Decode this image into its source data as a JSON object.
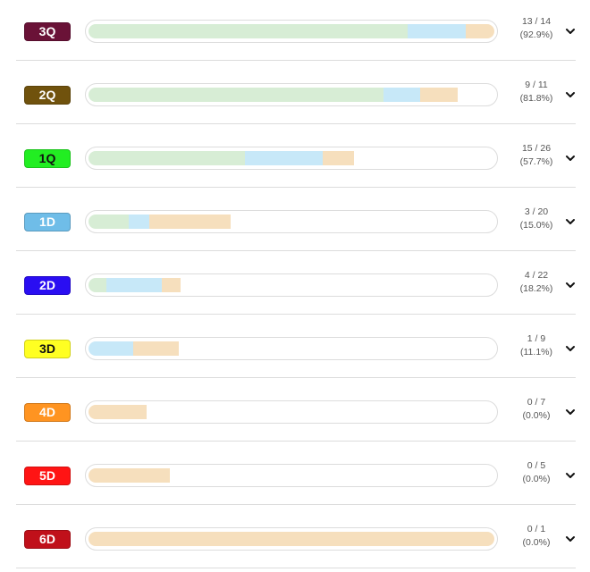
{
  "segment_colors": [
    "#d7edd5",
    "#c7e8f8",
    "#f6dfbd"
  ],
  "rows": [
    {
      "label": "3Q",
      "badge_color": "#6a1237",
      "badge_text_color": "#ffffff",
      "segments": [
        0.786,
        0.143,
        0.071
      ],
      "count": "13 / 14",
      "percent": "(92.9%)"
    },
    {
      "label": "2Q",
      "badge_color": "#70520d",
      "badge_text_color": "#ffffff",
      "segments": [
        0.727,
        0.091,
        0.091
      ],
      "count": "9 / 11",
      "percent": "(81.8%)"
    },
    {
      "label": "1Q",
      "badge_color": "#22ee22",
      "badge_text_color": "#111111",
      "segments": [
        0.385,
        0.192,
        0.077
      ],
      "count": "15 / 26",
      "percent": "(57.7%)"
    },
    {
      "label": "1D",
      "badge_color": "#6fbde8",
      "badge_text_color": "#ffffff",
      "segments": [
        0.1,
        0.05,
        0.2
      ],
      "count": "3 / 20",
      "percent": "(15.0%)"
    },
    {
      "label": "2D",
      "badge_color": "#2a0ef2",
      "badge_text_color": "#ffffff",
      "segments": [
        0.045,
        0.136,
        0.045
      ],
      "count": "4 / 22",
      "percent": "(18.2%)"
    },
    {
      "label": "3D",
      "badge_color": "#ffff22",
      "badge_text_color": "#111111",
      "segments": [
        0.0,
        0.111,
        0.111
      ],
      "count": "1 / 9",
      "percent": "(11.1%)"
    },
    {
      "label": "4D",
      "badge_color": "#ff9421",
      "badge_text_color": "#ffffff",
      "segments": [
        0.0,
        0.0,
        0.143
      ],
      "count": "0 / 7",
      "percent": "(0.0%)"
    },
    {
      "label": "5D",
      "badge_color": "#ff1414",
      "badge_text_color": "#ffffff",
      "segments": [
        0.0,
        0.0,
        0.2
      ],
      "count": "0 / 5",
      "percent": "(0.0%)"
    },
    {
      "label": "6D",
      "badge_color": "#c0101a",
      "badge_text_color": "#ffffff",
      "segments": [
        0.0,
        0.0,
        1.0
      ],
      "count": "0 / 1",
      "percent": "(0.0%)"
    }
  ],
  "expand_icon": "chevron-down-icon"
}
